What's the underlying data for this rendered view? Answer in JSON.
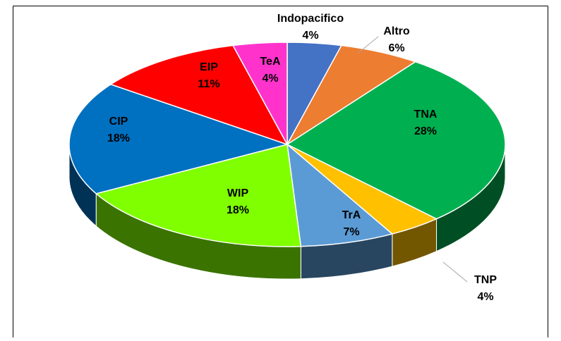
{
  "chart_data": {
    "type": "pie",
    "categories": [
      "Indopacifico",
      "Altro",
      "TNA",
      "TNP",
      "TrA",
      "WIP",
      "CIP",
      "EIP",
      "TeA"
    ],
    "values": [
      4,
      6,
      28,
      4,
      7,
      18,
      18,
      11,
      4
    ],
    "value_labels": [
      "4%",
      "6%",
      "28%",
      "4%",
      "7%",
      "18%",
      "18%",
      "11%",
      "4%"
    ],
    "colors": [
      "#4472c4",
      "#ed7d31",
      "#00b050",
      "#ffc000",
      "#5b9bd5",
      "#80ff00",
      "#0070c0",
      "#ff0000",
      "#ff33cc"
    ]
  }
}
